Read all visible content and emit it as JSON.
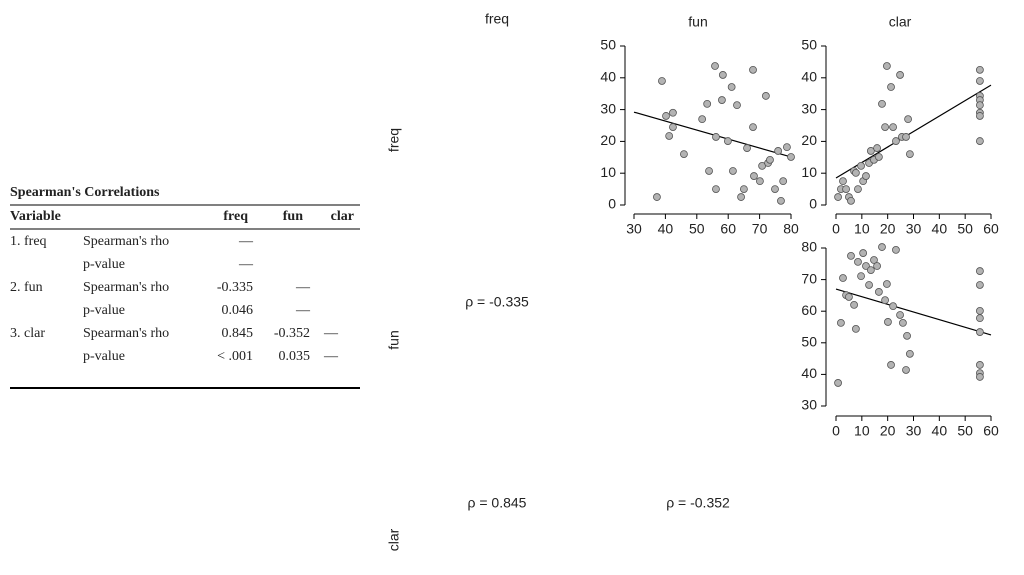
{
  "table": {
    "title": "Spearman's Correlations",
    "columns": [
      "Variable",
      "freq",
      "fun",
      "clar"
    ],
    "rows": [
      {
        "variable": "1. freq",
        "statistic": "Spearman's rho",
        "cells": [
          "—"
        ]
      },
      {
        "statistic": "p-value",
        "cells": [
          "—"
        ]
      },
      {
        "variable": "2. fun",
        "statistic": "Spearman's rho",
        "cells": [
          "-0.335",
          "—"
        ]
      },
      {
        "statistic": "p-value",
        "cells": [
          "0.046",
          "—"
        ]
      },
      {
        "variable": "3. clar",
        "statistic": "Spearman's rho",
        "cells": [
          "0.845",
          "-0.352",
          "—"
        ]
      },
      {
        "statistic": "p-value",
        "cells": [
          "< .001",
          "0.035",
          "—"
        ]
      }
    ]
  },
  "matrix": {
    "column_labels": [
      "freq",
      "fun",
      "clar"
    ],
    "row_labels": [
      "freq",
      "fun",
      "clar"
    ],
    "correlations": [
      "ρ = -0.335",
      "ρ = 0.845",
      "ρ = -0.352"
    ]
  },
  "chart_data": [
    {
      "type": "scatter",
      "color": "#b3b3b3",
      "x": [
        37.3,
        38.9,
        40.2,
        41.2,
        42.4,
        42.4,
        45.9,
        51.7,
        53.3,
        53.9,
        55.8,
        56.1,
        56.1,
        58,
        58.3,
        59.9,
        61.1,
        61.5,
        62.8,
        64.1,
        65,
        66,
        67.9,
        67.9,
        68.2,
        70.1,
        70.8,
        72,
        72.7,
        73.3,
        74.9,
        75.9,
        76.8,
        77.5,
        78.7,
        80
      ],
      "values": [
        2.5,
        39,
        28,
        21.7,
        29,
        24.5,
        16,
        27,
        31.8,
        10.7,
        43.7,
        21.4,
        5,
        33,
        40.9,
        20.1,
        37.1,
        10.7,
        31.4,
        2.5,
        5,
        17.9,
        42.5,
        24.5,
        9.1,
        7.5,
        12.3,
        34.3,
        13.2,
        14.2,
        5,
        17,
        1.3,
        7.5,
        18.2,
        15.1
      ],
      "trend": {
        "x": [
          30,
          80
        ],
        "y": [
          29.2,
          15.1
        ]
      },
      "xlim": [
        30,
        80
      ],
      "ylim": [
        0,
        50
      ],
      "xticks": [
        30,
        40,
        50,
        60,
        70,
        80
      ],
      "yticks": [
        0,
        10,
        20,
        30,
        40,
        50
      ]
    },
    {
      "type": "scatter",
      "color": "#b3b3b3",
      "x": [
        0.8,
        1.9,
        2.7,
        3.9,
        5,
        5.8,
        7,
        7.7,
        8.5,
        9.7,
        10.5,
        11.6,
        12.8,
        13.5,
        14.7,
        15.9,
        16.6,
        17.8,
        19,
        19.7,
        21.3,
        22.1,
        23.2,
        24.8,
        25.5,
        27.1,
        27.9,
        28.6,
        55.7,
        55.7,
        55.7,
        55.7,
        55.7,
        55.7,
        55.7,
        55.7
      ],
      "values": [
        2.5,
        5,
        7.5,
        5,
        2.5,
        1.3,
        10.7,
        10.1,
        5,
        12.3,
        7.5,
        9.1,
        13.2,
        17,
        14.2,
        17.9,
        15.1,
        31.8,
        24.5,
        43.7,
        37.1,
        24.5,
        20.1,
        40.9,
        21.4,
        21.4,
        27,
        16,
        42.5,
        39,
        34.3,
        33,
        31.4,
        29,
        28,
        20.1
      ],
      "trend": {
        "x": [
          0,
          60
        ],
        "y": [
          8.5,
          37.7
        ]
      },
      "xlim": [
        0,
        60
      ],
      "ylim": [
        0,
        50
      ],
      "xticks": [
        0,
        10,
        20,
        30,
        40,
        50,
        60
      ],
      "yticks": [
        0,
        10,
        20,
        30,
        40,
        50
      ]
    },
    {
      "type": "scatter",
      "color": "#b3b3b3",
      "x": [
        0.8,
        1.9,
        2.7,
        3.9,
        5,
        5.8,
        7,
        7.7,
        8.5,
        9.7,
        10.5,
        11.6,
        12.8,
        13.5,
        14.7,
        15.9,
        16.6,
        17.8,
        19,
        19.7,
        20.1,
        21.3,
        22.1,
        23.2,
        24.8,
        25.9,
        27.1,
        27.5,
        28.6,
        55.7,
        55.7,
        55.7,
        55.7,
        55.7,
        55.7,
        55.7,
        55.7
      ],
      "values": [
        37.3,
        56.3,
        70.5,
        65.1,
        64.5,
        77.5,
        62,
        54.4,
        75.6,
        71.1,
        78.4,
        74.3,
        68.3,
        73,
        76.2,
        74.3,
        66.1,
        80.3,
        63.5,
        68.6,
        56.6,
        43,
        61.6,
        79.4,
        58.8,
        56.3,
        41.4,
        52.2,
        46.5,
        72.7,
        68.3,
        60.1,
        57.8,
        53.4,
        43,
        40.4,
        39.2
      ],
      "trend": {
        "x": [
          0,
          60
        ],
        "y": [
          67,
          52.5
        ]
      },
      "xlim": [
        0,
        60
      ],
      "ylim": [
        30,
        80
      ],
      "xticks": [
        0,
        10,
        20,
        30,
        40,
        50,
        60
      ],
      "yticks": [
        30,
        40,
        50,
        60,
        70,
        80
      ]
    }
  ]
}
